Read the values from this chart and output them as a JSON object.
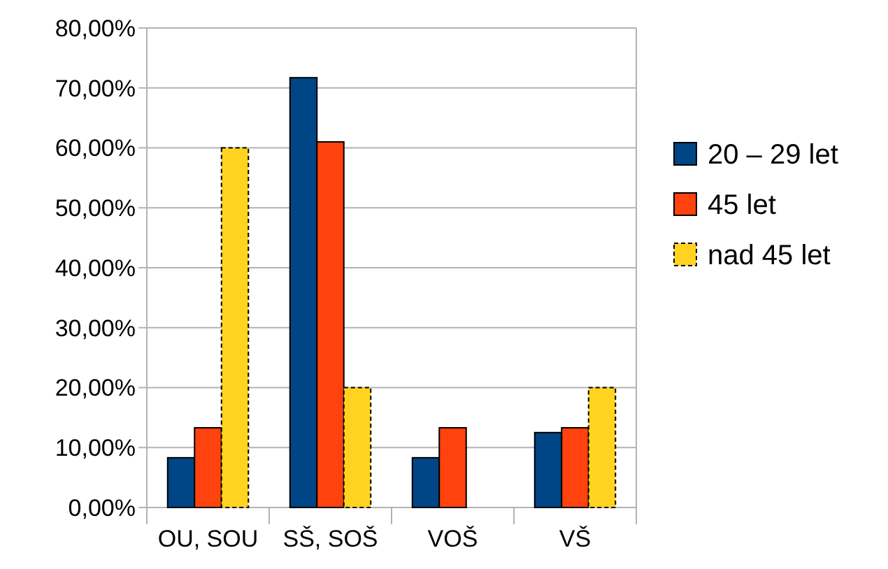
{
  "chart_data": {
    "type": "bar",
    "categories": [
      "OU, SOU",
      "SŠ, SOŠ",
      "VOŠ",
      "VŠ"
    ],
    "series": [
      {
        "name": "20 – 29 let",
        "color": "#004586",
        "values": [
          8.3,
          71.7,
          8.3,
          12.5
        ]
      },
      {
        "name": "45 let",
        "color": "#ff420e",
        "values": [
          13.3,
          61,
          13.3,
          13.3
        ]
      },
      {
        "name": "nad 45 let",
        "color": "#ffd320",
        "values": [
          60,
          20,
          null,
          20
        ],
        "line_style": "dashed"
      }
    ],
    "ylim": [
      0,
      80
    ],
    "yticks": [
      {
        "value": 0,
        "label": "0,00%"
      },
      {
        "value": 10,
        "label": "10,00%"
      },
      {
        "value": 20,
        "label": "20,00%"
      },
      {
        "value": 30,
        "label": "30,00%"
      },
      {
        "value": 40,
        "label": "40,00%"
      },
      {
        "value": 50,
        "label": "50,00%"
      },
      {
        "value": 60,
        "label": "60,00%"
      },
      {
        "value": 70,
        "label": "70,00%"
      },
      {
        "value": 80,
        "label": "80,00%"
      }
    ],
    "grid": "y",
    "legend": "right"
  }
}
